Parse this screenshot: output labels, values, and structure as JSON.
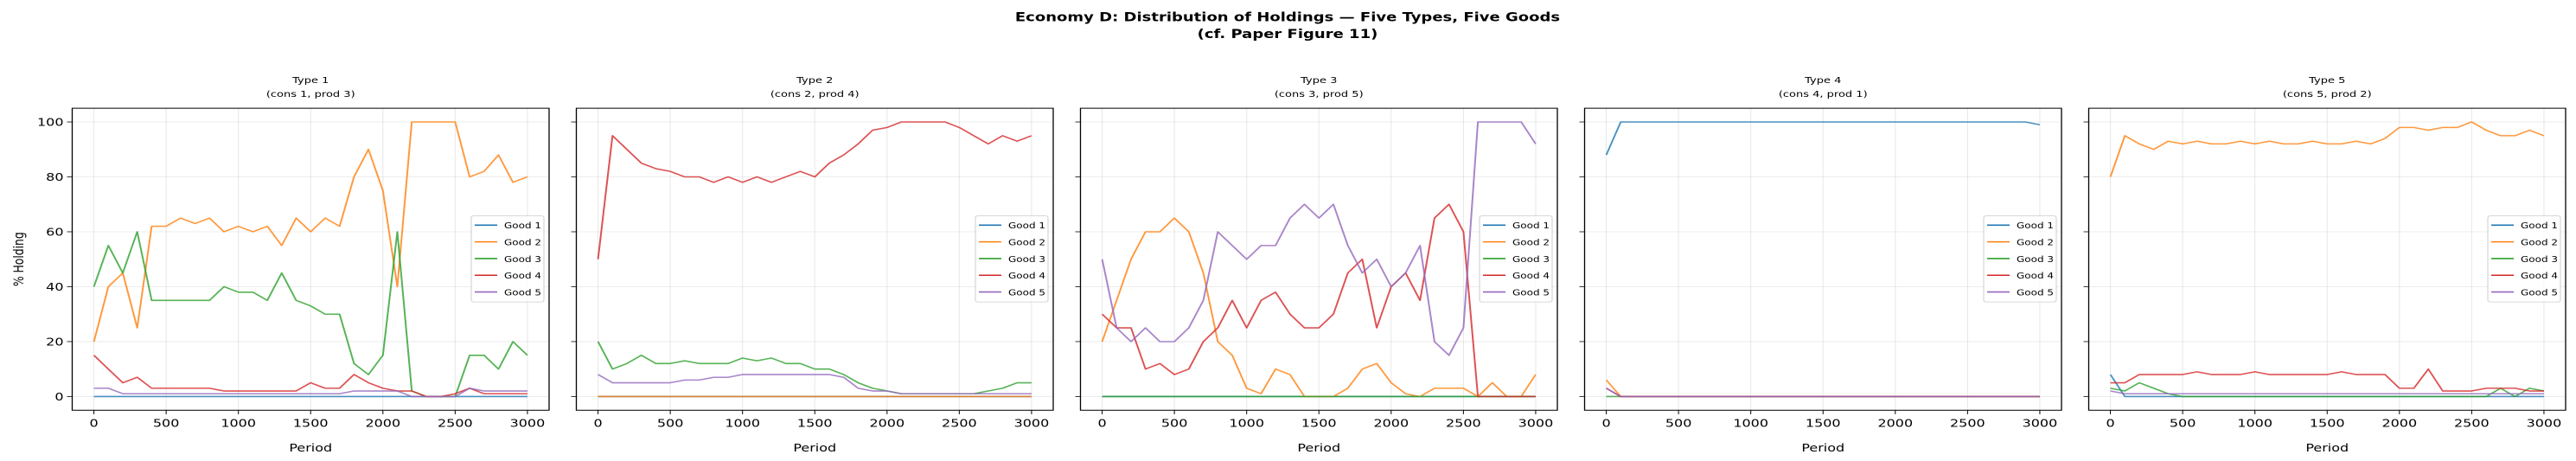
{
  "title": {
    "line1": "Economy D: Distribution of Holdings — Five Types, Five Goods",
    "line2": "(cf. Paper Figure 11)"
  },
  "colors": {
    "Good 1": "#1f77b4",
    "Good 2": "#ff7f0e",
    "Good 3": "#2ca02c",
    "Good 4": "#d62728",
    "Good 5": "#9467bd"
  },
  "chart_data": [
    {
      "type": "line",
      "title": "Type 1",
      "subtitle": "(cons 1, prod 3)",
      "xlabel": "Period",
      "ylabel": "% Holding",
      "xlim": [
        -150,
        3150
      ],
      "ylim": [
        -5,
        105
      ],
      "xticks": [
        0,
        500,
        1000,
        1500,
        2000,
        2500,
        3000
      ],
      "yticks": [
        0,
        20,
        40,
        60,
        80,
        100
      ],
      "grid": true,
      "legend": "center-right",
      "x": [
        0,
        100,
        200,
        300,
        400,
        500,
        600,
        700,
        800,
        900,
        1000,
        1100,
        1200,
        1300,
        1400,
        1500,
        1600,
        1700,
        1800,
        1900,
        2000,
        2100,
        2200,
        2300,
        2400,
        2500,
        2600,
        2700,
        2800,
        2900,
        3000
      ],
      "series": [
        {
          "name": "Good 1",
          "values": [
            0,
            0,
            0,
            0,
            0,
            0,
            0,
            0,
            0,
            0,
            0,
            0,
            0,
            0,
            0,
            0,
            0,
            0,
            0,
            0,
            0,
            0,
            0,
            0,
            0,
            0,
            0,
            0,
            0,
            0,
            0
          ]
        },
        {
          "name": "Good 2",
          "values": [
            20,
            40,
            45,
            25,
            62,
            62,
            65,
            63,
            65,
            60,
            62,
            60,
            62,
            55,
            65,
            60,
            65,
            62,
            80,
            90,
            75,
            40,
            100,
            100,
            100,
            100,
            80,
            82,
            88,
            78,
            80
          ]
        },
        {
          "name": "Good 3",
          "values": [
            40,
            55,
            45,
            60,
            35,
            35,
            35,
            35,
            35,
            40,
            38,
            38,
            35,
            45,
            35,
            33,
            30,
            30,
            12,
            8,
            15,
            60,
            2,
            0,
            0,
            0,
            15,
            15,
            10,
            20,
            15
          ]
        },
        {
          "name": "Good 4",
          "values": [
            15,
            10,
            5,
            7,
            3,
            3,
            3,
            3,
            3,
            2,
            2,
            2,
            2,
            2,
            2,
            5,
            3,
            3,
            8,
            5,
            3,
            2,
            2,
            0,
            0,
            1,
            3,
            1,
            1,
            1,
            1
          ]
        },
        {
          "name": "Good 5",
          "values": [
            3,
            3,
            1,
            1,
            1,
            1,
            1,
            1,
            1,
            1,
            1,
            1,
            1,
            1,
            1,
            1,
            1,
            1,
            2,
            2,
            2,
            2,
            0,
            0,
            0,
            0,
            3,
            2,
            2,
            2,
            2
          ]
        }
      ]
    },
    {
      "type": "line",
      "title": "Type 2",
      "subtitle": "(cons 2, prod 4)",
      "xlabel": "Period",
      "xlim": [
        -150,
        3150
      ],
      "ylim": [
        -5,
        105
      ],
      "xticks": [
        0,
        500,
        1000,
        1500,
        2000,
        2500,
        3000
      ],
      "yticks": [
        0,
        20,
        40,
        60,
        80,
        100
      ],
      "grid": true,
      "legend": "center-right",
      "x": [
        0,
        100,
        200,
        300,
        400,
        500,
        600,
        700,
        800,
        900,
        1000,
        1100,
        1200,
        1300,
        1400,
        1500,
        1600,
        1700,
        1800,
        1900,
        2000,
        2100,
        2200,
        2300,
        2400,
        2500,
        2600,
        2700,
        2800,
        2900,
        3000
      ],
      "series": [
        {
          "name": "Good 1",
          "values": [
            0,
            0,
            0,
            0,
            0,
            0,
            0,
            0,
            0,
            0,
            0,
            0,
            0,
            0,
            0,
            0,
            0,
            0,
            0,
            0,
            0,
            0,
            0,
            0,
            0,
            0,
            0,
            0,
            0,
            0,
            0
          ]
        },
        {
          "name": "Good 2",
          "values": [
            0,
            0,
            0,
            0,
            0,
            0,
            0,
            0,
            0,
            0,
            0,
            0,
            0,
            0,
            0,
            0,
            0,
            0,
            0,
            0,
            0,
            0,
            0,
            0,
            0,
            0,
            0,
            0,
            0,
            0,
            0
          ]
        },
        {
          "name": "Good 3",
          "values": [
            20,
            10,
            12,
            15,
            12,
            12,
            13,
            12,
            12,
            12,
            14,
            13,
            14,
            12,
            12,
            10,
            10,
            8,
            5,
            3,
            2,
            1,
            1,
            1,
            1,
            1,
            1,
            2,
            3,
            5,
            5
          ]
        },
        {
          "name": "Good 4",
          "values": [
            50,
            95,
            90,
            85,
            83,
            82,
            80,
            80,
            78,
            80,
            78,
            80,
            78,
            80,
            82,
            80,
            85,
            88,
            92,
            97,
            98,
            100,
            100,
            100,
            100,
            98,
            95,
            92,
            95,
            93,
            95
          ]
        },
        {
          "name": "Good 5",
          "values": [
            8,
            5,
            5,
            5,
            5,
            5,
            6,
            6,
            7,
            7,
            8,
            8,
            8,
            8,
            8,
            8,
            8,
            7,
            3,
            2,
            2,
            1,
            1,
            1,
            1,
            1,
            1,
            1,
            1,
            1,
            1
          ]
        }
      ]
    },
    {
      "type": "line",
      "title": "Type 3",
      "subtitle": "(cons 3, prod 5)",
      "xlabel": "Period",
      "xlim": [
        -150,
        3150
      ],
      "ylim": [
        -5,
        105
      ],
      "xticks": [
        0,
        500,
        1000,
        1500,
        2000,
        2500,
        3000
      ],
      "yticks": [
        0,
        20,
        40,
        60,
        80,
        100
      ],
      "grid": true,
      "legend": "center-right",
      "x": [
        0,
        100,
        200,
        300,
        400,
        500,
        600,
        700,
        800,
        900,
        1000,
        1100,
        1200,
        1300,
        1400,
        1500,
        1600,
        1700,
        1800,
        1900,
        2000,
        2100,
        2200,
        2300,
        2400,
        2500,
        2600,
        2700,
        2800,
        2900,
        3000
      ],
      "series": [
        {
          "name": "Good 1",
          "values": [
            0,
            0,
            0,
            0,
            0,
            0,
            0,
            0,
            0,
            0,
            0,
            0,
            0,
            0,
            0,
            0,
            0,
            0,
            0,
            0,
            0,
            0,
            0,
            0,
            0,
            0,
            0,
            0,
            0,
            0,
            0
          ]
        },
        {
          "name": "Good 2",
          "values": [
            20,
            35,
            50,
            60,
            60,
            65,
            60,
            45,
            20,
            15,
            3,
            1,
            10,
            8,
            0,
            0,
            0,
            3,
            10,
            12,
            5,
            1,
            0,
            3,
            3,
            3,
            0,
            5,
            0,
            0,
            8
          ]
        },
        {
          "name": "Good 3",
          "values": [
            0,
            0,
            0,
            0,
            0,
            0,
            0,
            0,
            0,
            0,
            0,
            0,
            0,
            0,
            0,
            0,
            0,
            0,
            0,
            0,
            0,
            0,
            0,
            0,
            0,
            0,
            0,
            0,
            0,
            0,
            0
          ]
        },
        {
          "name": "Good 4",
          "values": [
            30,
            25,
            25,
            10,
            12,
            8,
            10,
            20,
            25,
            35,
            25,
            35,
            38,
            30,
            25,
            25,
            30,
            45,
            50,
            25,
            40,
            45,
            35,
            65,
            70,
            60,
            0,
            0,
            0,
            0,
            0
          ]
        },
        {
          "name": "Good 5",
          "values": [
            50,
            25,
            20,
            25,
            20,
            20,
            25,
            35,
            60,
            55,
            50,
            55,
            55,
            65,
            70,
            65,
            70,
            55,
            45,
            50,
            40,
            45,
            55,
            20,
            15,
            25,
            100,
            100,
            100,
            100,
            92
          ]
        }
      ]
    },
    {
      "type": "line",
      "title": "Type 4",
      "subtitle": "(cons 4, prod 1)",
      "xlabel": "Period",
      "xlim": [
        -150,
        3150
      ],
      "ylim": [
        -5,
        105
      ],
      "xticks": [
        0,
        500,
        1000,
        1500,
        2000,
        2500,
        3000
      ],
      "yticks": [
        0,
        20,
        40,
        60,
        80,
        100
      ],
      "grid": true,
      "legend": "center-right",
      "x": [
        0,
        100,
        200,
        300,
        400,
        500,
        600,
        700,
        800,
        900,
        1000,
        1100,
        1200,
        1300,
        1400,
        1500,
        1600,
        1700,
        1800,
        1900,
        2000,
        2100,
        2200,
        2300,
        2400,
        2500,
        2600,
        2700,
        2800,
        2900,
        3000
      ],
      "series": [
        {
          "name": "Good 1",
          "values": [
            88,
            100,
            100,
            100,
            100,
            100,
            100,
            100,
            100,
            100,
            100,
            100,
            100,
            100,
            100,
            100,
            100,
            100,
            100,
            100,
            100,
            100,
            100,
            100,
            100,
            100,
            100,
            100,
            100,
            100,
            99
          ]
        },
        {
          "name": "Good 2",
          "values": [
            6,
            0,
            0,
            0,
            0,
            0,
            0,
            0,
            0,
            0,
            0,
            0,
            0,
            0,
            0,
            0,
            0,
            0,
            0,
            0,
            0,
            0,
            0,
            0,
            0,
            0,
            0,
            0,
            0,
            0,
            0
          ]
        },
        {
          "name": "Good 3",
          "values": [
            0,
            0,
            0,
            0,
            0,
            0,
            0,
            0,
            0,
            0,
            0,
            0,
            0,
            0,
            0,
            0,
            0,
            0,
            0,
            0,
            0,
            0,
            0,
            0,
            0,
            0,
            0,
            0,
            0,
            0,
            0
          ]
        },
        {
          "name": "Good 4",
          "values": [
            3,
            0,
            0,
            0,
            0,
            0,
            0,
            0,
            0,
            0,
            0,
            0,
            0,
            0,
            0,
            0,
            0,
            0,
            0,
            0,
            0,
            0,
            0,
            0,
            0,
            0,
            0,
            0,
            0,
            0,
            0
          ]
        },
        {
          "name": "Good 5",
          "values": [
            3,
            0,
            0,
            0,
            0,
            0,
            0,
            0,
            0,
            0,
            0,
            0,
            0,
            0,
            0,
            0,
            0,
            0,
            0,
            0,
            0,
            0,
            0,
            0,
            0,
            0,
            0,
            0,
            0,
            0,
            0
          ]
        }
      ]
    },
    {
      "type": "line",
      "title": "Type 5",
      "subtitle": "(cons 5, prod 2)",
      "xlabel": "Period",
      "xlim": [
        -150,
        3150
      ],
      "ylim": [
        -5,
        105
      ],
      "xticks": [
        0,
        500,
        1000,
        1500,
        2000,
        2500,
        3000
      ],
      "yticks": [
        0,
        20,
        40,
        60,
        80,
        100
      ],
      "grid": true,
      "legend": "center-right",
      "x": [
        0,
        100,
        200,
        300,
        400,
        500,
        600,
        700,
        800,
        900,
        1000,
        1100,
        1200,
        1300,
        1400,
        1500,
        1600,
        1700,
        1800,
        1900,
        2000,
        2100,
        2200,
        2300,
        2400,
        2500,
        2600,
        2700,
        2800,
        2900,
        3000
      ],
      "series": [
        {
          "name": "Good 1",
          "values": [
            8,
            0,
            0,
            0,
            0,
            0,
            0,
            0,
            0,
            0,
            0,
            0,
            0,
            0,
            0,
            0,
            0,
            0,
            0,
            0,
            0,
            0,
            0,
            0,
            0,
            0,
            0,
            0,
            0,
            0,
            0
          ]
        },
        {
          "name": "Good 2",
          "values": [
            80,
            95,
            92,
            90,
            93,
            92,
            93,
            92,
            92,
            93,
            92,
            93,
            92,
            92,
            93,
            92,
            92,
            93,
            92,
            94,
            98,
            98,
            97,
            98,
            98,
            100,
            97,
            95,
            95,
            97,
            95
          ]
        },
        {
          "name": "Good 3",
          "values": [
            3,
            2,
            5,
            3,
            1,
            0,
            0,
            0,
            0,
            0,
            0,
            0,
            0,
            0,
            0,
            0,
            0,
            0,
            0,
            0,
            0,
            0,
            0,
            0,
            0,
            0,
            0,
            3,
            0,
            3,
            2
          ]
        },
        {
          "name": "Good 4",
          "values": [
            5,
            5,
            8,
            8,
            8,
            8,
            9,
            8,
            8,
            8,
            9,
            8,
            8,
            8,
            8,
            8,
            9,
            8,
            8,
            8,
            3,
            3,
            10,
            2,
            2,
            2,
            3,
            3,
            3,
            2,
            2
          ]
        },
        {
          "name": "Good 5",
          "values": [
            2,
            1,
            1,
            1,
            1,
            1,
            1,
            1,
            1,
            1,
            1,
            1,
            1,
            1,
            1,
            1,
            1,
            1,
            1,
            1,
            1,
            1,
            1,
            1,
            1,
            1,
            1,
            1,
            1,
            1,
            1
          ]
        }
      ]
    }
  ]
}
